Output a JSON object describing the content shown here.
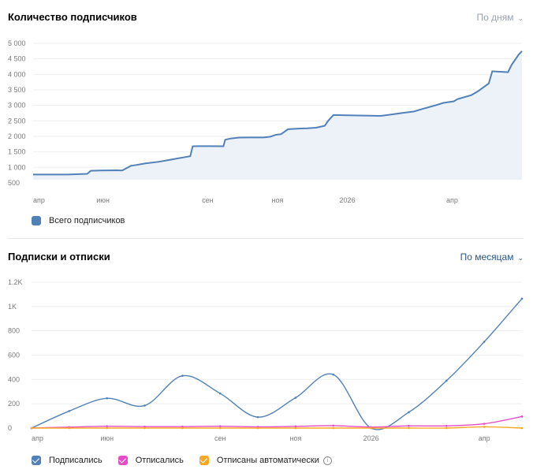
{
  "chart_data": [
    {
      "type": "area",
      "title": "Количество подписчиков",
      "period_selector": "По дням",
      "ylim": [
        600,
        5000
      ],
      "y_ticks": [
        500,
        1000,
        1500,
        2000,
        2500,
        3000,
        3500,
        4000,
        4500,
        5000
      ],
      "y_tick_labels": [
        "500",
        "1 000",
        "1 500",
        "2 000",
        "2 500",
        "3 000",
        "3 500",
        "4 000",
        "4 500",
        "5 000"
      ],
      "x_tick_labels": [
        {
          "label": "апр",
          "x": 0
        },
        {
          "label": "июн",
          "x": 2
        },
        {
          "label": "сен",
          "x": 5
        },
        {
          "label": "ноя",
          "x": 7
        },
        {
          "label": "2026",
          "x": 9
        },
        {
          "label": "апр",
          "x": 12
        }
      ],
      "x_max": 14,
      "grid": true,
      "legend_position": "bottom-left",
      "series": [
        {
          "name": "Всего подписчиков",
          "color": "#5181b8",
          "fill": "#edf2f9",
          "x": [
            0,
            0.5,
            1,
            1.3,
            1.55,
            1.65,
            2,
            2.4,
            2.55,
            2.8,
            2.95,
            3.2,
            3.6,
            3.9,
            4.1,
            4.35,
            4.5,
            4.57,
            4.7,
            5.05,
            5.45,
            5.5,
            5.65,
            5.9,
            6.2,
            6.6,
            6.8,
            6.95,
            7.1,
            7.3,
            7.6,
            7.85,
            8.1,
            8.35,
            8.45,
            8.6,
            9,
            9.5,
            9.95,
            10.3,
            10.6,
            10.9,
            11.2,
            11.55,
            11.75,
            12.05,
            12.15,
            12.55,
            12.75,
            13.05,
            13.15,
            13.6,
            13.7,
            13.9,
            14
          ],
          "y": [
            770,
            770,
            770,
            780,
            790,
            890,
            900,
            905,
            900,
            1050,
            1075,
            1125,
            1180,
            1240,
            1280,
            1330,
            1360,
            1680,
            1685,
            1685,
            1680,
            1890,
            1930,
            1960,
            1965,
            1965,
            1990,
            2050,
            2070,
            2230,
            2250,
            2260,
            2280,
            2340,
            2500,
            2690,
            2680,
            2670,
            2660,
            2710,
            2760,
            2800,
            2900,
            3010,
            3080,
            3130,
            3200,
            3330,
            3460,
            3710,
            4100,
            4070,
            4300,
            4630,
            4750
          ]
        }
      ]
    },
    {
      "type": "line",
      "title": "Подписки и отписки",
      "period_selector": "По месяцам",
      "ylim": [
        0,
        1200
      ],
      "y_ticks": [
        0,
        200,
        400,
        600,
        800,
        1000,
        1200
      ],
      "y_tick_labels": [
        "0",
        "200",
        "400",
        "600",
        "800",
        "1K",
        "1.2K"
      ],
      "x_tick_labels": [
        {
          "label": "апр",
          "x": 0
        },
        {
          "label": "июн",
          "x": 2
        },
        {
          "label": "сен",
          "x": 5
        },
        {
          "label": "ноя",
          "x": 7
        },
        {
          "label": "2026",
          "x": 9
        },
        {
          "label": "апр",
          "x": 12
        }
      ],
      "x_max": 13,
      "grid": true,
      "legend_position": "bottom-left",
      "series": [
        {
          "name": "Подписались",
          "color": "#5181b8",
          "x": [
            0,
            1,
            2,
            3,
            4,
            5,
            6,
            7,
            8,
            9,
            10,
            11,
            12,
            13
          ],
          "y": [
            0,
            140,
            245,
            185,
            430,
            285,
            90,
            250,
            440,
            0,
            130,
            390,
            710,
            1065
          ]
        },
        {
          "name": "Отписались",
          "color": "#e64cc8",
          "x": [
            0,
            1,
            2,
            3,
            4,
            5,
            6,
            7,
            8,
            9,
            10,
            11,
            12,
            13
          ],
          "y": [
            0,
            8,
            15,
            12,
            12,
            15,
            10,
            14,
            20,
            8,
            18,
            18,
            35,
            95
          ]
        },
        {
          "name": "Отписаны автоматически",
          "color": "#f9a825",
          "x": [
            0,
            1,
            2,
            3,
            4,
            5,
            6,
            7,
            8,
            9,
            10,
            11,
            12,
            13
          ],
          "y": [
            0,
            0,
            0,
            0,
            0,
            0,
            0,
            0,
            0,
            0,
            0,
            0,
            10,
            0
          ]
        }
      ]
    }
  ]
}
